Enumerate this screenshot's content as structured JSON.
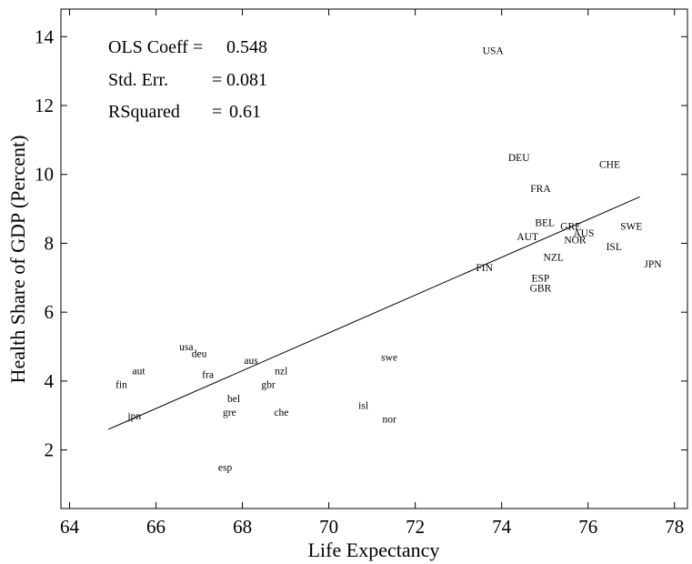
{
  "chart_data": {
    "type": "scatter",
    "title": "",
    "xlabel": "Life Expectancy",
    "ylabel": "Health Share of GDP (Percent)",
    "xlim": [
      63.8,
      78.3
    ],
    "ylim": [
      0.3,
      14.8
    ],
    "xticks": [
      "64",
      "66",
      "68",
      "70",
      "72",
      "74",
      "76",
      "78"
    ],
    "yticks": [
      "2",
      "4",
      "6",
      "8",
      "10",
      "12",
      "14"
    ],
    "grid": false,
    "stats": [
      {
        "label": "OLS Coeff =",
        "value": "0.548"
      },
      {
        "label": "Std. Err.",
        "sep": "=",
        "value": "0.081"
      },
      {
        "label": "RSquared",
        "sep": "=",
        "value": "0.61"
      }
    ],
    "fit_line": {
      "x": [
        64.9,
        77.2
      ],
      "y": [
        2.6,
        9.35
      ]
    },
    "points": [
      {
        "label": "USA",
        "x": 73.8,
        "y": 13.6
      },
      {
        "label": "DEU",
        "x": 74.4,
        "y": 10.5
      },
      {
        "label": "CHE",
        "x": 76.5,
        "y": 10.3
      },
      {
        "label": "FRA",
        "x": 74.9,
        "y": 9.6
      },
      {
        "label": "BEL",
        "x": 75.0,
        "y": 8.6
      },
      {
        "label": "GRE",
        "x": 75.6,
        "y": 8.5
      },
      {
        "label": "SWE",
        "x": 77.0,
        "y": 8.5
      },
      {
        "label": "AUS",
        "x": 75.9,
        "y": 8.3
      },
      {
        "label": "AUT",
        "x": 74.6,
        "y": 8.2
      },
      {
        "label": "NOR",
        "x": 75.7,
        "y": 8.1
      },
      {
        "label": "ISL",
        "x": 76.6,
        "y": 7.9
      },
      {
        "label": "NZL",
        "x": 75.2,
        "y": 7.6
      },
      {
        "label": "JPN",
        "x": 77.5,
        "y": 7.4
      },
      {
        "label": "FIN",
        "x": 73.6,
        "y": 7.3
      },
      {
        "label": "ESP",
        "x": 74.9,
        "y": 7.0
      },
      {
        "label": "GBR",
        "x": 74.9,
        "y": 6.7
      },
      {
        "label": "usa",
        "x": 66.7,
        "y": 5.0
      },
      {
        "label": "deu",
        "x": 67.0,
        "y": 4.8
      },
      {
        "label": "swe",
        "x": 71.4,
        "y": 4.7
      },
      {
        "label": "aus",
        "x": 68.2,
        "y": 4.6
      },
      {
        "label": "aut",
        "x": 65.6,
        "y": 4.3
      },
      {
        "label": "nzl",
        "x": 68.9,
        "y": 4.3
      },
      {
        "label": "fra",
        "x": 67.2,
        "y": 4.2
      },
      {
        "label": "gbr",
        "x": 68.6,
        "y": 3.9
      },
      {
        "label": "fin",
        "x": 65.2,
        "y": 3.9
      },
      {
        "label": "bel",
        "x": 67.8,
        "y": 3.5
      },
      {
        "label": "isl",
        "x": 70.8,
        "y": 3.3
      },
      {
        "label": "gre",
        "x": 67.7,
        "y": 3.1
      },
      {
        "label": "che",
        "x": 68.9,
        "y": 3.1
      },
      {
        "label": "jpn",
        "x": 65.5,
        "y": 3.0
      },
      {
        "label": "nor",
        "x": 71.4,
        "y": 2.9
      },
      {
        "label": "esp",
        "x": 67.6,
        "y": 1.5
      }
    ]
  }
}
